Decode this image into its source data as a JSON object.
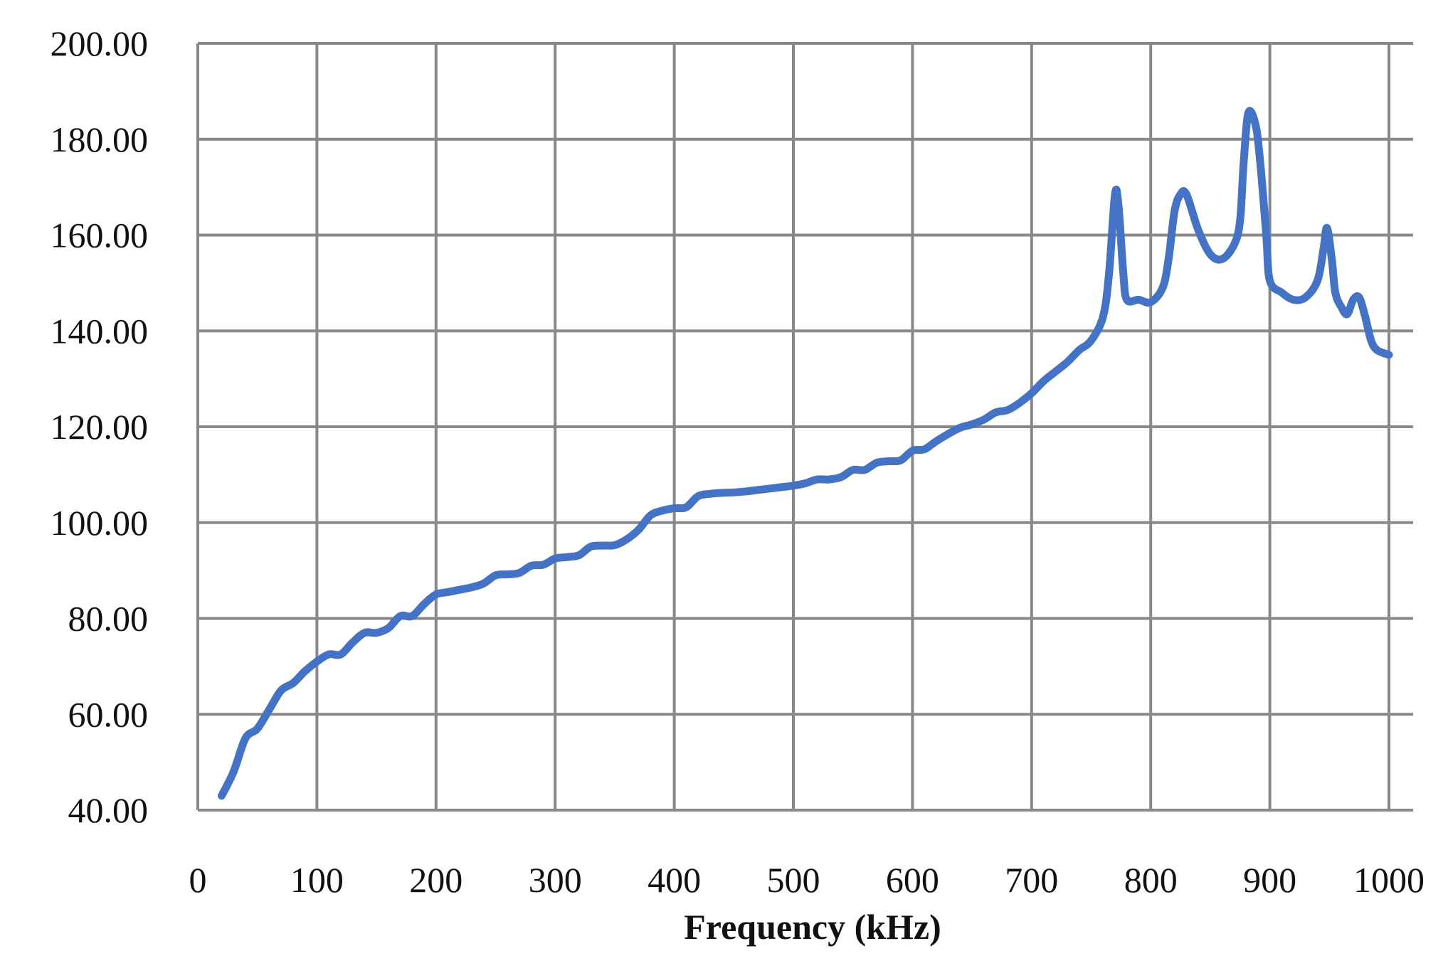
{
  "chart_data": {
    "type": "line",
    "title": "",
    "xlabel": "Frequency (kHz)",
    "ylabel": "",
    "xlim": [
      0,
      1000
    ],
    "ylim": [
      40,
      200
    ],
    "x_ticks": [
      "0",
      "100",
      "200",
      "300",
      "400",
      "500",
      "600",
      "700",
      "800",
      "900",
      "1000"
    ],
    "y_ticks": [
      "40.00",
      "60.00",
      "80.00",
      "100.00",
      "120.00",
      "140.00",
      "160.00",
      "180.00",
      "200.00"
    ],
    "grid": true,
    "legend": "none",
    "series": [
      {
        "color": "#4472C4",
        "x": [
          20,
          30,
          40,
          50,
          60,
          70,
          80,
          90,
          100,
          110,
          120,
          130,
          140,
          150,
          160,
          170,
          180,
          190,
          200,
          210,
          220,
          230,
          240,
          250,
          260,
          270,
          280,
          290,
          300,
          310,
          320,
          330,
          340,
          350,
          360,
          370,
          380,
          390,
          400,
          410,
          420,
          430,
          440,
          450,
          460,
          470,
          480,
          490,
          500,
          510,
          520,
          530,
          540,
          550,
          560,
          570,
          580,
          590,
          600,
          610,
          620,
          630,
          640,
          650,
          660,
          670,
          680,
          690,
          700,
          710,
          720,
          730,
          740,
          750,
          760,
          765,
          770,
          773,
          777,
          780,
          790,
          800,
          810,
          815,
          820,
          825,
          830,
          840,
          850,
          860,
          870,
          875,
          878,
          882,
          888,
          892,
          897,
          900,
          910,
          920,
          930,
          940,
          945,
          948,
          952,
          955,
          960,
          965,
          970,
          975,
          980,
          985,
          990,
          1000
        ],
        "y": [
          43,
          48,
          55,
          57,
          61,
          65,
          66.5,
          69,
          71,
          72.5,
          72.5,
          75,
          77,
          77,
          78,
          80.5,
          80.5,
          83,
          85,
          85.5,
          86,
          86.5,
          87.3,
          89,
          89.2,
          89.5,
          91,
          91.2,
          92.5,
          92.8,
          93.2,
          95,
          95.2,
          95.3,
          96.5,
          98.5,
          101.5,
          102.5,
          103,
          103.2,
          105.5,
          106,
          106.2,
          106.3,
          106.5,
          106.8,
          107.1,
          107.4,
          107.7,
          108.2,
          109,
          109,
          109.5,
          111,
          111,
          112.5,
          112.8,
          113,
          115,
          115.3,
          117,
          118.5,
          119.8,
          120.5,
          121.5,
          123,
          123.5,
          125,
          127,
          129.5,
          131.5,
          133.5,
          136,
          138,
          143,
          152,
          168.5,
          166,
          152,
          146.5,
          146.5,
          146,
          149,
          155,
          165,
          168.5,
          168.5,
          161,
          156,
          155,
          158,
          163,
          175,
          185.5,
          183,
          175,
          160,
          150.5,
          148,
          146.5,
          147,
          150.5,
          157,
          161.5,
          155,
          148,
          145,
          143.5,
          146.5,
          147,
          143,
          138,
          136,
          135
        ]
      }
    ]
  }
}
